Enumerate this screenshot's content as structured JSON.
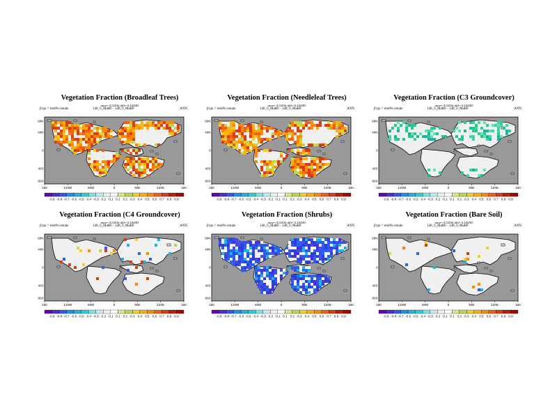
{
  "panels": [
    {
      "title": "Vegetation Fraction (Broadleaf Trees)",
      "subtitle": "rmse= 0.34536 diff= 0.236585",
      "expt": "Expt = treePo-trstale",
      "model": "148_6_MaBF - 148_6_MaBF",
      "season": "ANN",
      "scheme": "warm"
    },
    {
      "title": "Vegetation Fraction (Needleleaf Trees)",
      "subtitle": "rmse= 0.34536 diff= 0.236585",
      "expt": "Expt = treePo-trstale",
      "model": "148_6_MaBF - 148_6_MaBF",
      "season": "ANN",
      "scheme": "warm"
    },
    {
      "title": "Vegetation Fraction (C3 Groundcover)",
      "subtitle": "rmse= 0.34536 diff= 0.236585",
      "expt": "Expt = treePo-trstale",
      "model": "148_6_MaBF - 148_6_MaBF",
      "season": "ANN",
      "scheme": "green"
    },
    {
      "title": "Vegetation Fraction (C4 Groundcover)",
      "subtitle": "rmse= 0.34536 diff= 0.236585",
      "expt": "Expt = treePo-trstale",
      "model": "148_6_MaBF - 148_6_MaBF",
      "season": "ANN",
      "scheme": "sparse"
    },
    {
      "title": "Vegetation Fraction (Shrubs)",
      "subtitle": "rmse= 0.34536 diff= 0.236585",
      "expt": "Expt = treePo-trstale",
      "model": "148_6_MaBF - 148_6_MaBF",
      "season": "ANN",
      "scheme": "blue"
    },
    {
      "title": "Vegetation Fraction (Bare Soil)",
      "subtitle": "rmse= 0.34536 diff= 0.236585",
      "expt": "Expt = treePo-trstale",
      "model": "148_6_MaBF - 148_6_MaBF",
      "season": "ANN",
      "scheme": "sparse"
    }
  ],
  "lat_labels": [
    "60N",
    "40N",
    "0",
    "40S",
    "80S"
  ],
  "lon_labels": [
    "180",
    "120W",
    "60W",
    "0",
    "60E",
    "120E",
    "180"
  ],
  "colorbar_labels": [
    "-0.9",
    "-0.8",
    "-0.7",
    "-0.6",
    "-0.5",
    "-0.4",
    "-0.3",
    "-0.2",
    "-0.1",
    "0.1",
    "0.2",
    "0.3",
    "0.4",
    "0.5",
    "0.6",
    "0.7",
    "0.8",
    "0.9"
  ],
  "colorbar_colors": [
    "#6a00c0",
    "#4a2ee0",
    "#2c5ef2",
    "#1b8ef2",
    "#16b6e6",
    "#2acfd0",
    "#7fe0e6",
    "#bfeef2",
    "#f0f0f0",
    "#ffffff",
    "#e4e470",
    "#b8d84a",
    "#f0d020",
    "#ffb000",
    "#ff8a00",
    "#f26010",
    "#e03a10",
    "#c81808",
    "#a00a00"
  ],
  "colors": {
    "ocean": "#999999",
    "land": "#f0f0f0"
  }
}
